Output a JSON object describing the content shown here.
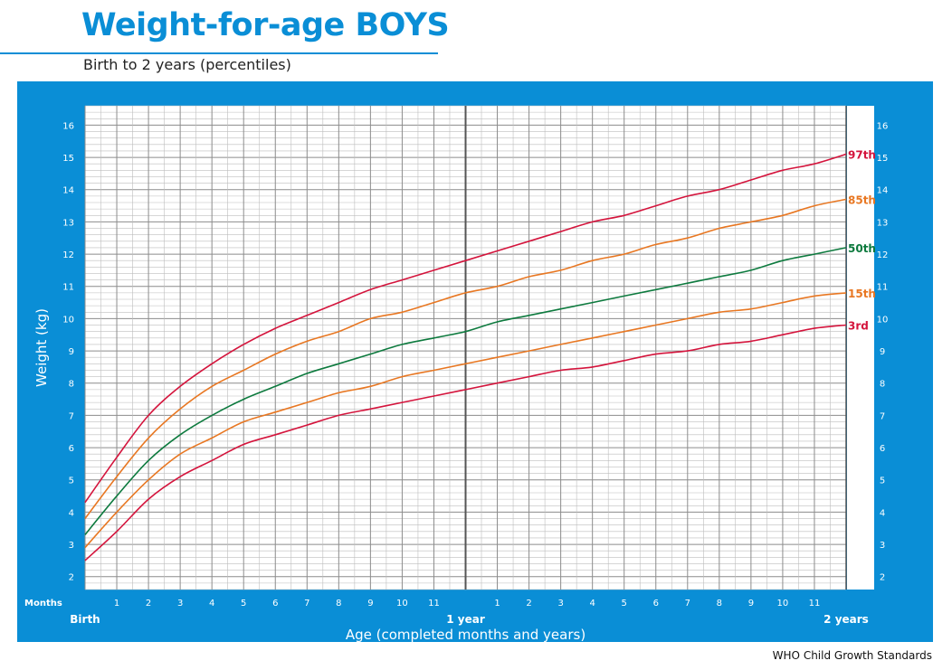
{
  "header": {
    "title": "Weight-for-age BOYS",
    "subtitle": "Birth to 2 years (percentiles)"
  },
  "footer": {
    "source": "WHO Child Growth Standards"
  },
  "colors": {
    "panel": "#0a8ed6",
    "plot_bg": "#ffffff",
    "grid_minor": "#bdbdbd",
    "grid_major": "#8c8c8c",
    "year_line": "#555555",
    "p97": "#d4143c",
    "p85": "#e87722",
    "p50": "#0d7a3e",
    "p15": "#e87722",
    "p3": "#d4143c"
  },
  "chart_data": {
    "type": "line",
    "title": "Weight-for-age BOYS",
    "subtitle": "Birth to 2 years (percentiles)",
    "xlabel": "Age (completed months and years)",
    "ylabel": "Weight (kg)",
    "xlim": [
      0,
      24
    ],
    "ylim": [
      1.6,
      16.6
    ],
    "grid": true,
    "y_ticks": [
      2,
      3,
      4,
      5,
      6,
      7,
      8,
      9,
      10,
      11,
      12,
      13,
      14,
      15,
      16
    ],
    "months_label": "Months",
    "x_month_ticks": [
      "1",
      "2",
      "3",
      "4",
      "5",
      "6",
      "7",
      "8",
      "9",
      "10",
      "11",
      "1",
      "2",
      "3",
      "4",
      "5",
      "6",
      "7",
      "8",
      "9",
      "10",
      "11"
    ],
    "x_major_labels": [
      {
        "month": 0,
        "label": "Birth"
      },
      {
        "month": 12,
        "label": "1 year"
      },
      {
        "month": 24,
        "label": "2 years"
      }
    ],
    "x": [
      0,
      1,
      2,
      3,
      4,
      5,
      6,
      7,
      8,
      9,
      10,
      11,
      12,
      13,
      14,
      15,
      16,
      17,
      18,
      19,
      20,
      21,
      22,
      23,
      24
    ],
    "series": [
      {
        "name": "97th",
        "color_key": "p97",
        "values": [
          4.3,
          5.7,
          7.0,
          7.9,
          8.6,
          9.2,
          9.7,
          10.1,
          10.5,
          10.9,
          11.2,
          11.5,
          11.8,
          12.1,
          12.4,
          12.7,
          13.0,
          13.2,
          13.5,
          13.8,
          14.0,
          14.3,
          14.6,
          14.8,
          15.1
        ]
      },
      {
        "name": "85th",
        "color_key": "p85",
        "values": [
          3.8,
          5.1,
          6.3,
          7.2,
          7.9,
          8.4,
          8.9,
          9.3,
          9.6,
          10.0,
          10.2,
          10.5,
          10.8,
          11.0,
          11.3,
          11.5,
          11.8,
          12.0,
          12.3,
          12.5,
          12.8,
          13.0,
          13.2,
          13.5,
          13.7
        ]
      },
      {
        "name": "50th",
        "color_key": "p50",
        "values": [
          3.3,
          4.5,
          5.6,
          6.4,
          7.0,
          7.5,
          7.9,
          8.3,
          8.6,
          8.9,
          9.2,
          9.4,
          9.6,
          9.9,
          10.1,
          10.3,
          10.5,
          10.7,
          10.9,
          11.1,
          11.3,
          11.5,
          11.8,
          12.0,
          12.2
        ]
      },
      {
        "name": "15th",
        "color_key": "p15",
        "values": [
          2.9,
          4.0,
          5.0,
          5.8,
          6.3,
          6.8,
          7.1,
          7.4,
          7.7,
          7.9,
          8.2,
          8.4,
          8.6,
          8.8,
          9.0,
          9.2,
          9.4,
          9.6,
          9.8,
          10.0,
          10.2,
          10.3,
          10.5,
          10.7,
          10.8
        ]
      },
      {
        "name": "3rd",
        "color_key": "p3",
        "values": [
          2.5,
          3.4,
          4.4,
          5.1,
          5.6,
          6.1,
          6.4,
          6.7,
          7.0,
          7.2,
          7.4,
          7.6,
          7.8,
          8.0,
          8.2,
          8.4,
          8.5,
          8.7,
          8.9,
          9.0,
          9.2,
          9.3,
          9.5,
          9.7,
          9.8
        ]
      }
    ]
  }
}
